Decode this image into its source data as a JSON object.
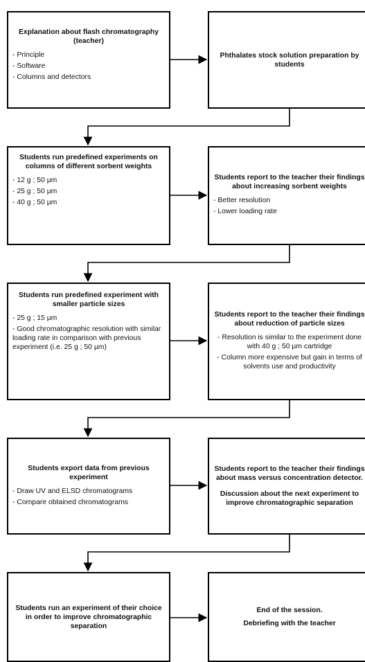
{
  "boxes": [
    {
      "id": "b1",
      "title": "Explanation about flash chromatography (teacher)",
      "items": [
        "Principle",
        "Software",
        "Columns and detectors"
      ]
    },
    {
      "id": "b2",
      "title": "Phthalates stock solution preparation by students"
    },
    {
      "id": "b3",
      "title": "Students run predefined experiments on columns of different sorbent weights",
      "items": [
        "12 g ; 50 µm",
        "25 g ; 50 µm",
        "40 g ; 50 µm"
      ]
    },
    {
      "id": "b4",
      "title": "Students report to the teacher their findings about increasing sorbent weights",
      "items": [
        "Better resolution",
        "Lower loading rate"
      ]
    },
    {
      "id": "b5",
      "title": "Students run predefined experiment with smaller particle sizes",
      "items": [
        "25 g ; 15 µm",
        "Good chromatographic resolution with similar loading rate in comparison with previous experiment (i.e. 25 g ; 50 µm)"
      ]
    },
    {
      "id": "b6",
      "title": "Students report to the teacher their findings about reduction of particle sizes",
      "items": [
        "Resolution is similar to the experiment done with 40 g ; 50 µm cartridge",
        "Column more expensive but gain in terms of solvents use and productivity"
      ]
    },
    {
      "id": "b7",
      "title": "Students export data from previous experiment",
      "items": [
        "Draw UV and ELSD chromatograms",
        "Compare obtained chromatograms"
      ]
    },
    {
      "id": "b8",
      "title": "Students report to the teacher their findings about mass versus concentration detector.",
      "sub": "Discussion about the next experiment to improve chromatographic separation"
    },
    {
      "id": "b9",
      "title": "Students run an experiment of their choice in order to improve chromatographic separation"
    },
    {
      "id": "b10",
      "title": "End of the session.",
      "sub": "Debriefing with the teacher"
    }
  ]
}
